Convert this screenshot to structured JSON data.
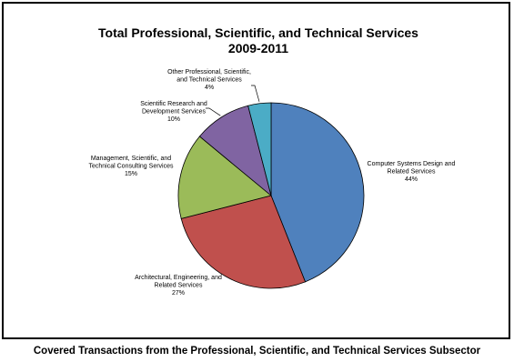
{
  "chart_data": {
    "type": "pie",
    "title": [
      "Total Professional, Scientific, and Technical Services",
      "2009-2011"
    ],
    "slices": [
      {
        "label": [
          "Computer Systems Design and",
          "Related Services",
          "44%"
        ],
        "value": 44,
        "color": "#4F81BD"
      },
      {
        "label": [
          "Architectural, Engineering, and",
          "Related Services",
          "27%"
        ],
        "value": 27,
        "color": "#C0504D"
      },
      {
        "label": [
          "Management, Scientific, and",
          "Technical Consulting Services",
          "15%"
        ],
        "value": 15,
        "color": "#9BBB59"
      },
      {
        "label": [
          "Scientific Research and",
          "Development Services",
          "10%"
        ],
        "value": 10,
        "color": "#8064A2"
      },
      {
        "label": [
          "Other Professional, Scientific,",
          "and Technical Services",
          "4%"
        ],
        "value": 4,
        "color": "#4BACC6"
      }
    ]
  },
  "caption": "Covered Transactions from the Professional, Scientific, and Technical Services Subsector"
}
